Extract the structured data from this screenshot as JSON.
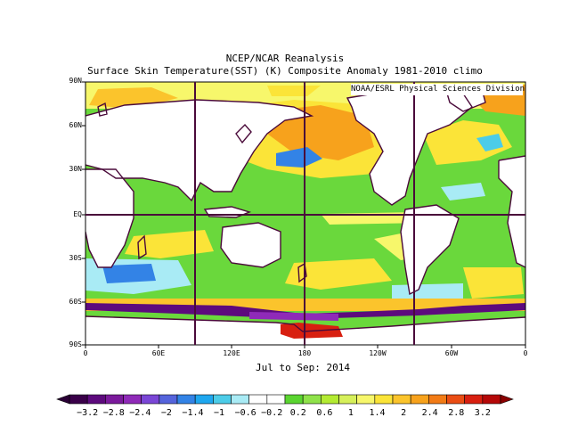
{
  "title": "NCEP/NCAR Reanalysis",
  "subtitle": "Surface Skin Temperature(SST) (K) Composite Anomaly 1981-2010 climo",
  "credit": "NOAA/ESRL Physical Sciences Division",
  "period": "Jul to Sep: 2014",
  "lat_labels": [
    "90N",
    "60N",
    "30N",
    "EQ",
    "30S",
    "60S",
    "90S"
  ],
  "lon_labels": [
    "0",
    "60E",
    "120E",
    "180",
    "120W",
    "60W",
    "0"
  ],
  "colorbar": {
    "labels": [
      "-3.2",
      "-2.8",
      "-2.4",
      "-2",
      "-1.4",
      "-1",
      "-0.6",
      "-0.2",
      "0.2",
      "0.6",
      "1",
      "1.4",
      "2",
      "2.4",
      "2.8",
      "3.2"
    ],
    "colors": [
      "#3a0049",
      "#5d0a7d",
      "#7b1a9c",
      "#8f2ab8",
      "#7a46d6",
      "#5564dc",
      "#3383e6",
      "#1ea7ef",
      "#4ccce8",
      "#a9ebf5",
      "#ffffff",
      "#ffffff",
      "#5ad530",
      "#8fe24a",
      "#b3eb32",
      "#d6f05a",
      "#f7f76b",
      "#fbe438",
      "#fbc42c",
      "#f7a21c",
      "#f27b16",
      "#ea4d14",
      "#d81f10",
      "#b50808"
    ],
    "arrow_left_color": "#2a0035",
    "arrow_right_color": "#8a0000"
  },
  "colors": {
    "land": "#ffffff",
    "coast": "#4a0a3a",
    "grid_box": "#4a0a3a",
    "neutral_ocean": "#6ad83c",
    "warm": "#fbe438",
    "hot": "#f7a21c",
    "very_hot": "#e2301a",
    "cool": "#a9ebf5",
    "cold": "#3383e6",
    "very_cold": "#5d0a7d"
  }
}
